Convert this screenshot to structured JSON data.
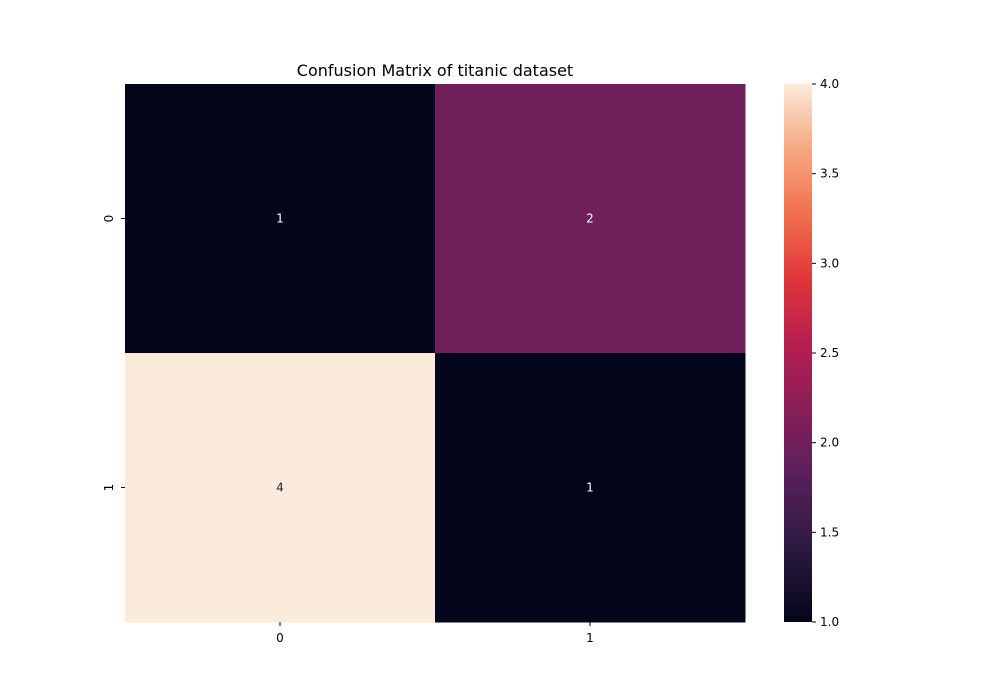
{
  "chart_data": {
    "type": "heatmap",
    "title": "Confusion Matrix of titanic dataset",
    "x_categories": [
      "0",
      "1"
    ],
    "y_categories": [
      "0",
      "1"
    ],
    "values": [
      [
        1,
        2
      ],
      [
        4,
        1
      ]
    ],
    "annotations": true,
    "colormap": "rocket",
    "colorbar": {
      "range": [
        1.0,
        4.0
      ],
      "ticks": [
        1.0,
        1.5,
        2.0,
        2.5,
        3.0,
        3.5,
        4.0
      ],
      "tick_labels": [
        "1.0",
        "1.5",
        "2.0",
        "2.5",
        "3.0",
        "3.5",
        "4.0"
      ]
    },
    "xlabel": "",
    "ylabel": "",
    "grid": false
  }
}
